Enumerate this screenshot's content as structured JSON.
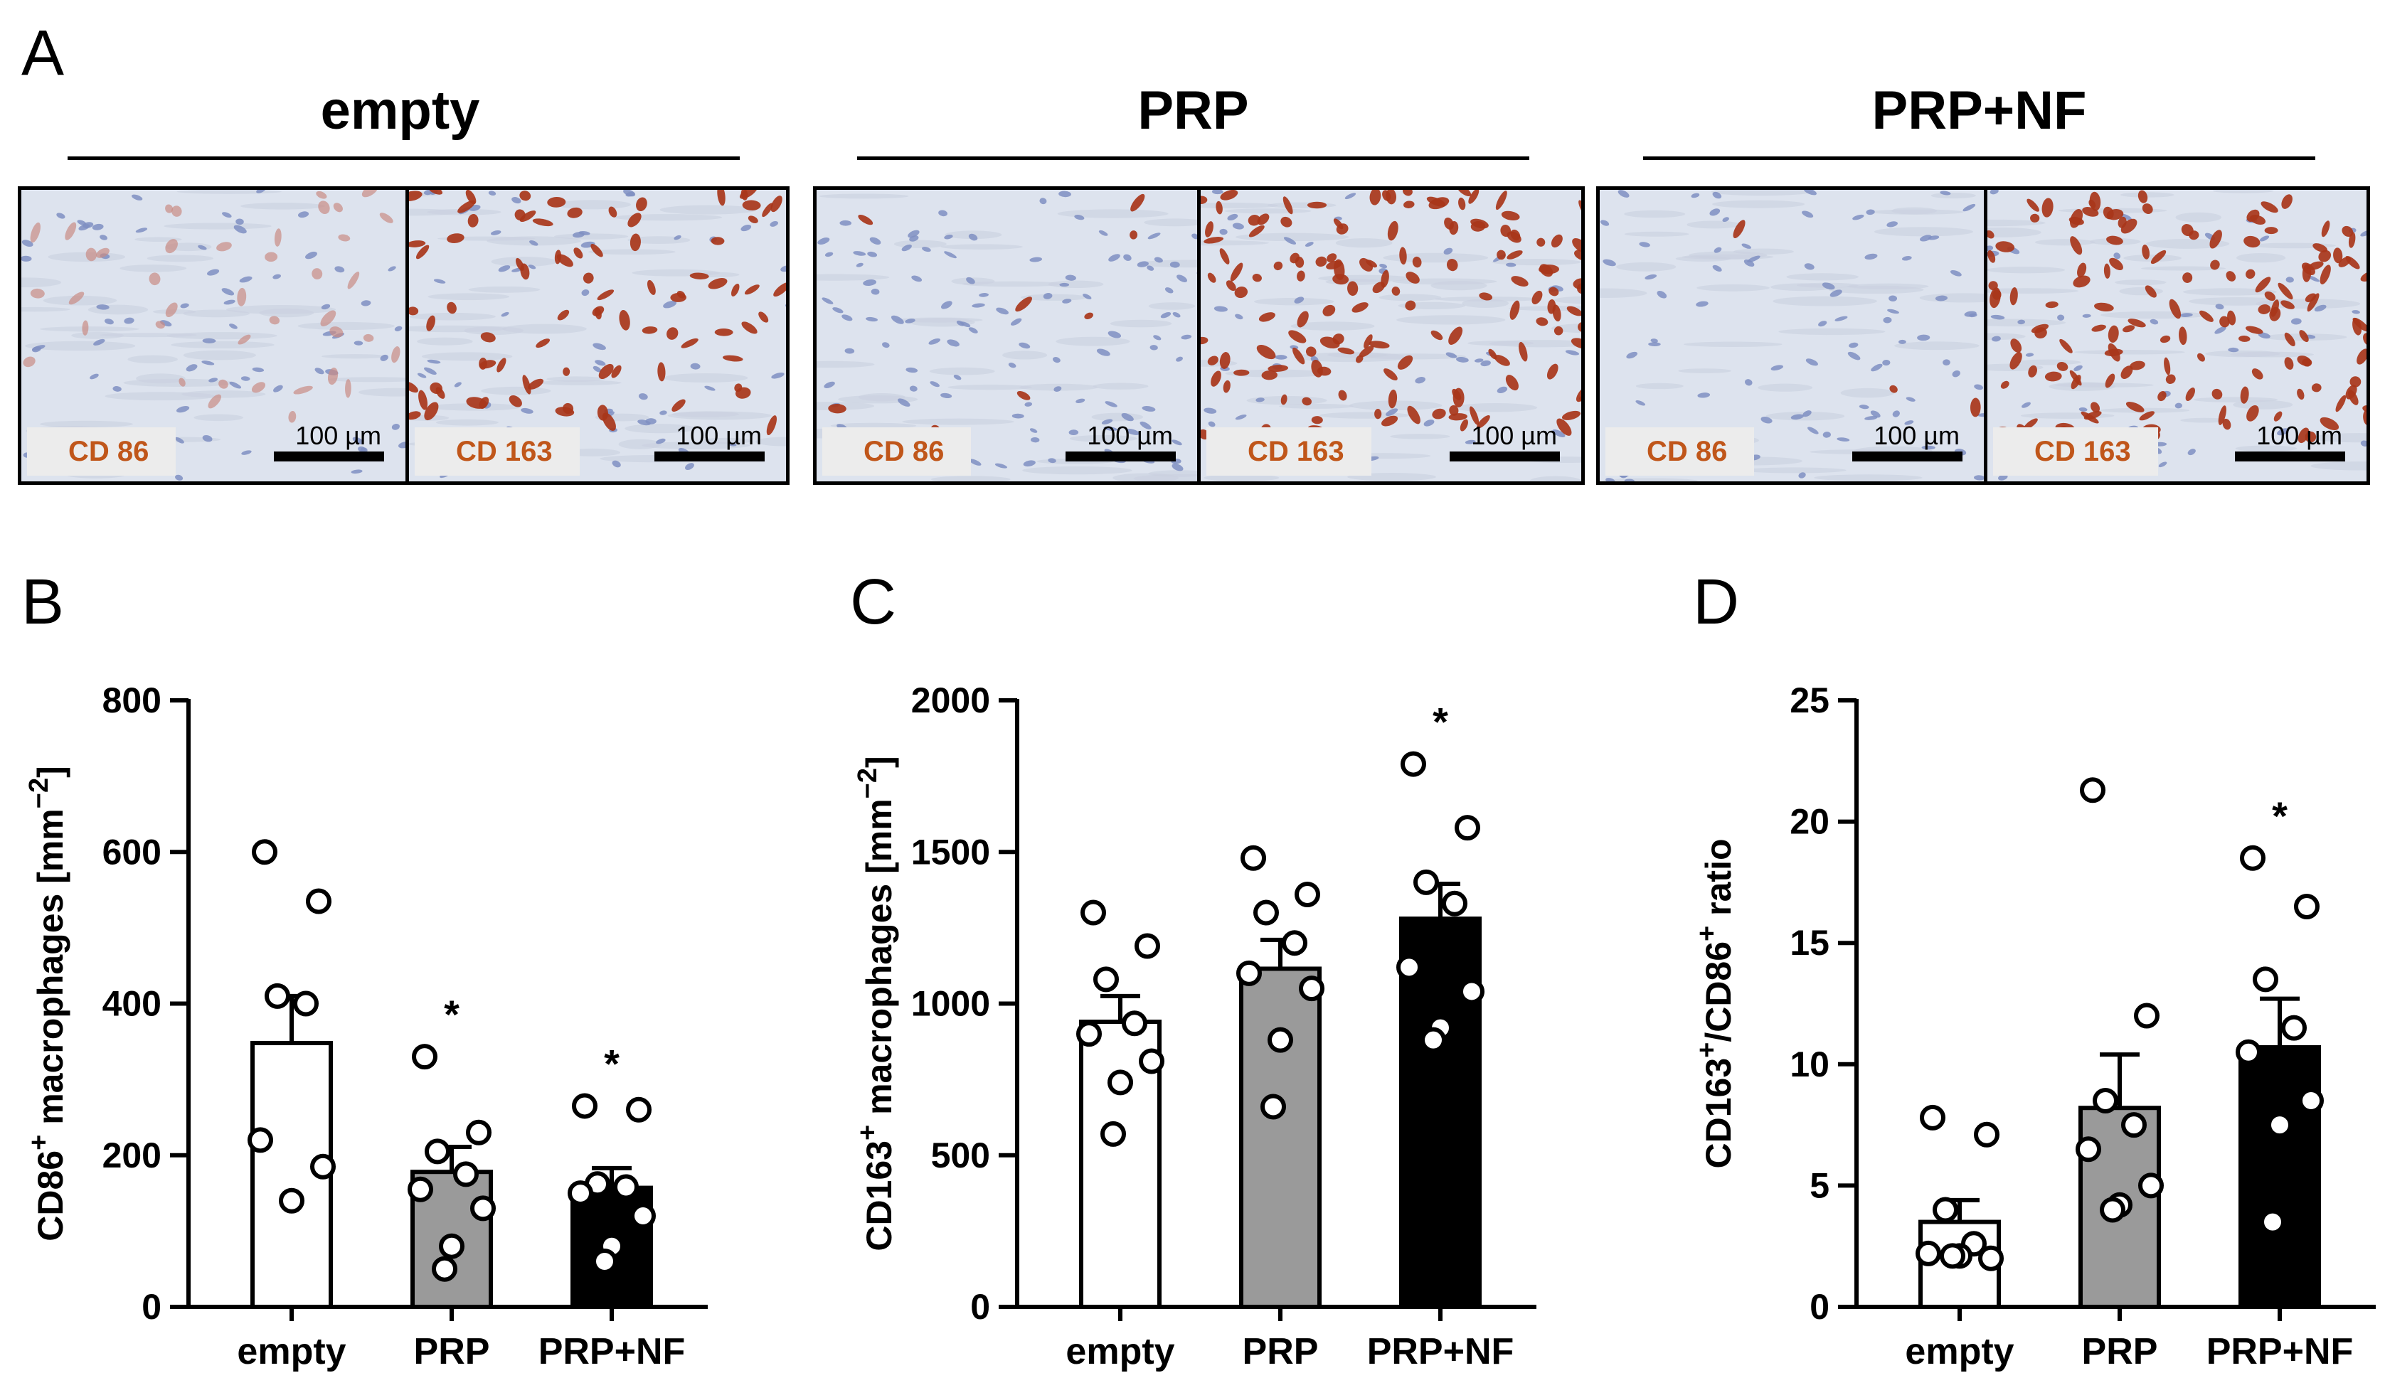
{
  "panel_letters": {
    "a": "A",
    "b": "B",
    "c": "C",
    "d": "D"
  },
  "panel_a": {
    "groups": [
      {
        "title": "empty",
        "tiles": [
          {
            "stain": "CD 86",
            "scale": "100 µm",
            "tone": "light-cd86"
          },
          {
            "stain": "CD 163",
            "scale": "100 µm",
            "tone": "cd163-medium"
          }
        ]
      },
      {
        "title": "PRP",
        "tiles": [
          {
            "stain": "CD 86",
            "scale": "100 µm",
            "tone": "light"
          },
          {
            "stain": "CD 163",
            "scale": "100 µm",
            "tone": "cd163-dense"
          }
        ]
      },
      {
        "title": "PRP+NF",
        "tiles": [
          {
            "stain": "CD 86",
            "scale": "100 µm",
            "tone": "very-light"
          },
          {
            "stain": "CD 163",
            "scale": "100 µm",
            "tone": "cd163-dense"
          }
        ]
      }
    ],
    "colors": {
      "label_text": "#c0561a",
      "label_bg": "#ececec",
      "tissue": "#dde3ee",
      "nuclei": "#7f8fc2",
      "stain": "#a8361a"
    }
  },
  "chart_data": [
    {
      "type": "bar",
      "panel": "B",
      "categories": [
        "empty",
        "PRP",
        "PRP+NF"
      ],
      "values": [
        348,
        178,
        157
      ],
      "errors": [
        62,
        33,
        26
      ],
      "points": [
        [
          600,
          535,
          410,
          400,
          220,
          185,
          140
        ],
        [
          330,
          230,
          205,
          175,
          155,
          130,
          80,
          50
        ],
        [
          265,
          260,
          162,
          158,
          150,
          120,
          80,
          60
        ]
      ],
      "significance": [
        "",
        "*",
        "*"
      ],
      "bar_colors": [
        "#ffffff",
        "#9a9a9a",
        "#000000"
      ],
      "ylabel": "CD86+ macrophages [mm−2]",
      "ylabel_parts": {
        "base": "CD86",
        "sup1": "+",
        "rest": " macrophages  [mm",
        "sup2": "−2",
        "end": "]"
      },
      "ylim": [
        0,
        800
      ],
      "yticks": [
        0,
        200,
        400,
        600,
        800
      ]
    },
    {
      "type": "bar",
      "panel": "C",
      "categories": [
        "empty",
        "PRP",
        "PRP+NF"
      ],
      "values": [
        940,
        1115,
        1280
      ],
      "errors": [
        85,
        95,
        115
      ],
      "points": [
        [
          1300,
          1190,
          1080,
          935,
          900,
          810,
          740,
          570
        ],
        [
          1480,
          1360,
          1300,
          1200,
          1100,
          1050,
          880,
          660
        ],
        [
          1790,
          1580,
          1400,
          1330,
          1120,
          1040,
          920,
          880
        ]
      ],
      "significance": [
        "",
        "",
        "*"
      ],
      "bar_colors": [
        "#ffffff",
        "#9a9a9a",
        "#000000"
      ],
      "ylabel": "CD163+ macrophages [mm−2]",
      "ylabel_parts": {
        "base": "CD163",
        "sup1": "+",
        "rest": " macrophages [mm",
        "sup2": "−2",
        "end": "]"
      },
      "ylim": [
        0,
        2000
      ],
      "yticks": [
        0,
        500,
        1000,
        1500,
        2000
      ]
    },
    {
      "type": "bar",
      "panel": "D",
      "categories": [
        "empty",
        "PRP",
        "PRP+NF"
      ],
      "values": [
        3.5,
        8.2,
        10.7
      ],
      "errors": [
        0.9,
        2.2,
        2.0
      ],
      "points": [
        [
          7.8,
          7.1,
          4.0,
          2.6,
          2.2,
          2.0,
          2.1,
          2.1
        ],
        [
          21.3,
          12.0,
          8.5,
          7.5,
          6.5,
          5.0,
          4.2,
          4.0
        ],
        [
          18.5,
          16.5,
          13.5,
          11.5,
          10.5,
          8.5,
          7.5,
          3.5
        ]
      ],
      "significance": [
        "",
        "",
        "*"
      ],
      "bar_colors": [
        "#ffffff",
        "#9a9a9a",
        "#000000"
      ],
      "ylabel": "CD163+/CD86+ ratio",
      "ylabel_parts": {
        "base": "CD163",
        "sup1": "+",
        "rest": "/CD86",
        "sup2": "+",
        "end": " ratio"
      },
      "ylim": [
        0,
        25
      ],
      "yticks": [
        0,
        5,
        10,
        15,
        20,
        25
      ]
    }
  ]
}
